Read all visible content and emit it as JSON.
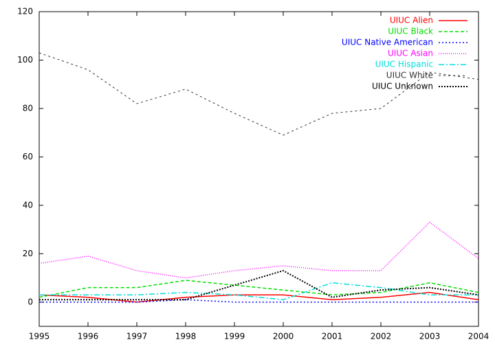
{
  "chart_data": {
    "type": "line",
    "x": [
      1995,
      1996,
      1997,
      1998,
      1999,
      2000,
      2001,
      2002,
      2003,
      2004
    ],
    "xlim": [
      1995,
      2004
    ],
    "xticks": [
      1995,
      1996,
      1997,
      1998,
      1999,
      2000,
      2001,
      2002,
      2003,
      2004
    ],
    "ylim": [
      -10,
      120
    ],
    "yticks": [
      0,
      20,
      40,
      60,
      80,
      100,
      120
    ],
    "legend": "top-right",
    "series": [
      {
        "name": "UIUC Alien",
        "color": "#ff0000",
        "dash": "none",
        "width": 1.5,
        "values": [
          3,
          2,
          0,
          2,
          3,
          3,
          1,
          2,
          4,
          1
        ]
      },
      {
        "name": "UIUC Black",
        "color": "#00dd00",
        "dash": "5,3",
        "width": 1.5,
        "values": [
          2,
          6,
          6,
          9,
          7,
          5,
          3,
          4,
          8,
          4
        ]
      },
      {
        "name": "UIUC Native American",
        "color": "#0000ff",
        "dash": "2,3",
        "width": 1.5,
        "values": [
          0,
          0,
          0,
          1,
          0,
          0,
          0,
          0,
          0,
          0
        ]
      },
      {
        "name": "UIUC Asian",
        "color": "#ff00ff",
        "dash": "1,2",
        "width": 1.5,
        "values": [
          16,
          19,
          13,
          10,
          13,
          15,
          13,
          13,
          33,
          18
        ]
      },
      {
        "name": "UIUC Hispanic",
        "color": "#00dddd",
        "dash": "8,3,2,3",
        "width": 1.5,
        "values": [
          3,
          3,
          3,
          4,
          3,
          1,
          8,
          6,
          3,
          3
        ]
      },
      {
        "name": "UIUC White",
        "color": "#333333",
        "dash": "3,4",
        "width": 1,
        "values": [
          103,
          96,
          82,
          88,
          78,
          69,
          78,
          80,
          95,
          92
        ]
      },
      {
        "name": "UIUC Unknown",
        "color": "#000000",
        "dash": "2,2",
        "width": 2,
        "values": [
          1,
          1,
          1,
          1,
          7,
          13,
          2,
          5,
          6,
          3
        ]
      }
    ]
  }
}
